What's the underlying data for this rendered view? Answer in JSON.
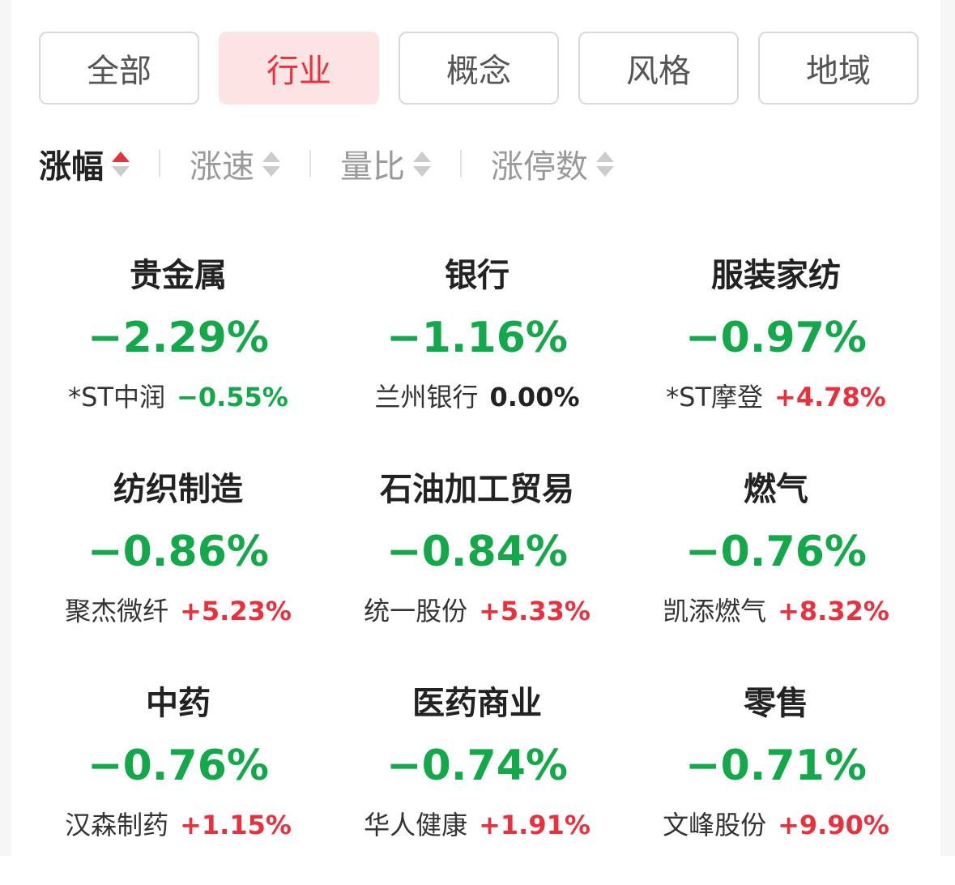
{
  "tabs": [
    {
      "label": "全部",
      "active": false
    },
    {
      "label": "行业",
      "active": true
    },
    {
      "label": "概念",
      "active": false
    },
    {
      "label": "风格",
      "active": false
    },
    {
      "label": "地域",
      "active": false
    }
  ],
  "sort": [
    {
      "label": "涨幅",
      "active": true,
      "direction": "asc-highlight"
    },
    {
      "label": "涨速",
      "active": false
    },
    {
      "label": "量比",
      "active": false
    },
    {
      "label": "涨停数",
      "active": false
    }
  ],
  "colors": {
    "up": "#e8313d",
    "down": "#13a84a",
    "active_tab_bg": "#fde4e4"
  },
  "sectors": [
    {
      "name": "贵金属",
      "change": "−2.29%",
      "leader": "*ST中润",
      "leader_change": "−0.55%",
      "leader_trend": "down"
    },
    {
      "name": "银行",
      "change": "−1.16%",
      "leader": "兰州银行",
      "leader_change": "0.00%",
      "leader_trend": "flat"
    },
    {
      "name": "服装家纺",
      "change": "−0.97%",
      "leader": "*ST摩登",
      "leader_change": "+4.78%",
      "leader_trend": "up"
    },
    {
      "name": "纺织制造",
      "change": "−0.86%",
      "leader": "聚杰微纤",
      "leader_change": "+5.23%",
      "leader_trend": "up"
    },
    {
      "name": "石油加工贸易",
      "change": "−0.84%",
      "leader": "统一股份",
      "leader_change": "+5.33%",
      "leader_trend": "up"
    },
    {
      "name": "燃气",
      "change": "−0.76%",
      "leader": "凯添燃气",
      "leader_change": "+8.32%",
      "leader_trend": "up"
    },
    {
      "name": "中药",
      "change": "−0.76%",
      "leader": "汉森制药",
      "leader_change": "+1.15%",
      "leader_trend": "up"
    },
    {
      "name": "医药商业",
      "change": "−0.74%",
      "leader": "华人健康",
      "leader_change": "+1.91%",
      "leader_trend": "up"
    },
    {
      "name": "零售",
      "change": "−0.71%",
      "leader": "文峰股份",
      "leader_change": "+9.90%",
      "leader_trend": "up"
    }
  ]
}
